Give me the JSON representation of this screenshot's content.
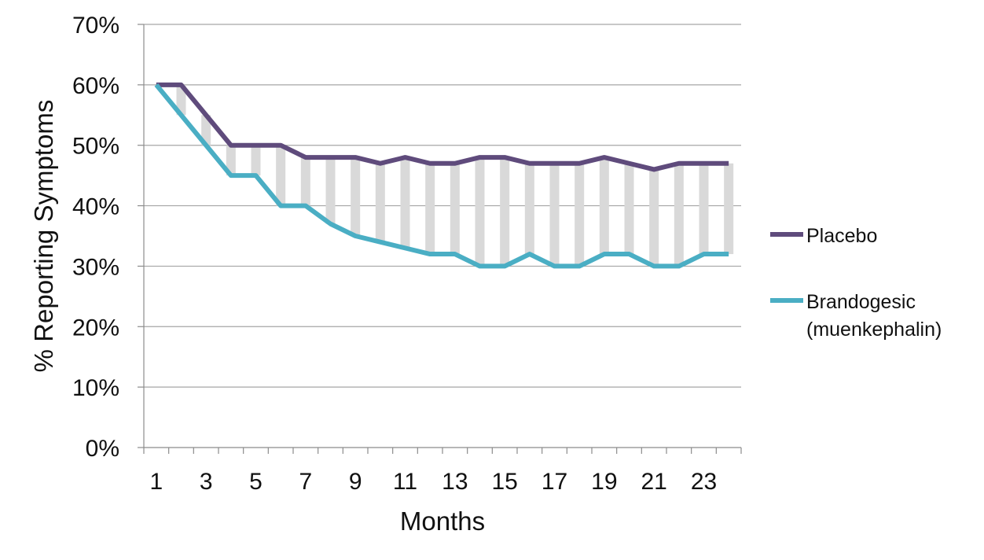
{
  "chart_data": {
    "type": "line",
    "title": "",
    "xlabel": "Months",
    "ylabel": "% Reporting Symptoms",
    "ylim": [
      0,
      70
    ],
    "y_ticks": [
      "0%",
      "10%",
      "20%",
      "30%",
      "40%",
      "50%",
      "60%",
      "70%"
    ],
    "x_tick_labels": [
      "1",
      "3",
      "5",
      "7",
      "9",
      "11",
      "13",
      "15",
      "17",
      "19",
      "21",
      "23"
    ],
    "x": [
      1,
      2,
      3,
      4,
      5,
      6,
      7,
      8,
      9,
      10,
      11,
      12,
      13,
      14,
      15,
      16,
      17,
      18,
      19,
      20,
      21,
      22,
      23,
      24
    ],
    "grid": true,
    "legend_position": "right",
    "high_low_bars": true,
    "series": [
      {
        "name": "Placebo",
        "color": "#5f4b7c",
        "values": [
          60,
          60,
          55,
          50,
          50,
          50,
          48,
          48,
          48,
          47,
          48,
          47,
          47,
          48,
          48,
          47,
          47,
          47,
          48,
          47,
          46,
          47,
          47,
          47
        ]
      },
      {
        "name": "Brandogesic (muenkephalin)",
        "legend_lines": [
          "Brandogesic",
          "(muenkephalin)"
        ],
        "color": "#4aaec4",
        "values": [
          60,
          55,
          50,
          45,
          45,
          40,
          40,
          37,
          35,
          34,
          33,
          32,
          32,
          30,
          30,
          32,
          30,
          30,
          32,
          32,
          30,
          30,
          32,
          32
        ]
      }
    ],
    "bar_color": "#d9d9d9",
    "gridline_color": "#a6a6a6"
  }
}
